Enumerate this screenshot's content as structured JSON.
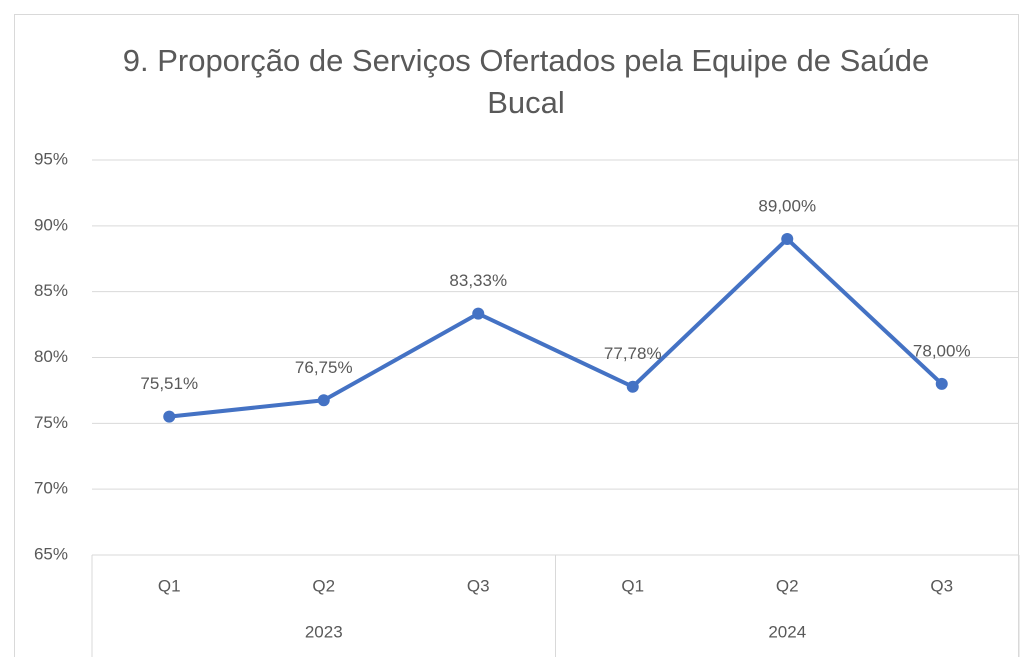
{
  "chart_data": {
    "type": "line",
    "title": "9. Proporção de Serviços Ofertados pela Equipe de Saúde Bucal",
    "categories": [
      "Q1",
      "Q2",
      "Q3",
      "Q1",
      "Q2",
      "Q3"
    ],
    "category_groups": [
      "2023",
      "2023",
      "2023",
      "2024",
      "2024",
      "2024"
    ],
    "series": [
      {
        "color": "#4472c4",
        "values": [
          75.51,
          76.75,
          83.33,
          77.78,
          89.0,
          78.0
        ],
        "value_labels": [
          "75,51%",
          "76,75%",
          "83,33%",
          "77,78%",
          "89,00%",
          "78,00%"
        ]
      }
    ],
    "ylim": [
      65,
      95
    ],
    "yticks": [
      {
        "value": 65,
        "label": "65%"
      },
      {
        "value": 70,
        "label": "70%"
      },
      {
        "value": 75,
        "label": "75%"
      },
      {
        "value": 80,
        "label": "80%"
      },
      {
        "value": 85,
        "label": "85%"
      },
      {
        "value": 90,
        "label": "90%"
      },
      {
        "value": 95,
        "label": "95%"
      }
    ],
    "grid": true
  }
}
